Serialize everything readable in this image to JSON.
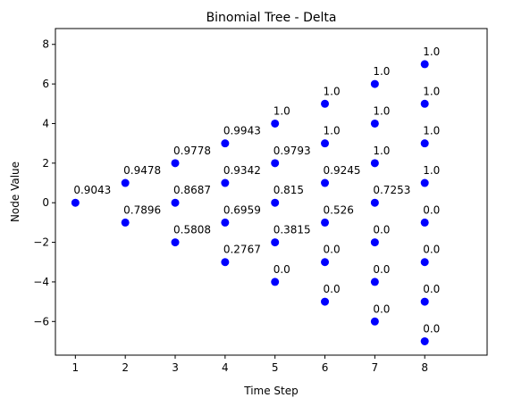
{
  "chart_data": {
    "type": "scatter",
    "title": "Binomial Tree - Delta",
    "xlabel": "Time Step",
    "ylabel": "Node Value",
    "xlim": [
      0.6,
      9.25
    ],
    "ylim": [
      -7.7,
      8.8
    ],
    "xticks": [
      1,
      2,
      3,
      4,
      5,
      6,
      7,
      8
    ],
    "yticks": [
      -6,
      -4,
      -2,
      0,
      2,
      4,
      6,
      8
    ],
    "grid": false,
    "marker_color": "#0000ff",
    "points": [
      {
        "x": 1,
        "y": 0,
        "label": "0.9043"
      },
      {
        "x": 2,
        "y": 1,
        "label": "0.9478"
      },
      {
        "x": 2,
        "y": -1,
        "label": "0.7896"
      },
      {
        "x": 3,
        "y": 2,
        "label": "0.9778"
      },
      {
        "x": 3,
        "y": 0,
        "label": "0.8687"
      },
      {
        "x": 3,
        "y": -2,
        "label": "0.5808"
      },
      {
        "x": 4,
        "y": 3,
        "label": "0.9943"
      },
      {
        "x": 4,
        "y": 1,
        "label": "0.9342"
      },
      {
        "x": 4,
        "y": -1,
        "label": "0.6959"
      },
      {
        "x": 4,
        "y": -3,
        "label": "0.2767"
      },
      {
        "x": 5,
        "y": 4,
        "label": "1.0"
      },
      {
        "x": 5,
        "y": 2,
        "label": "0.9793"
      },
      {
        "x": 5,
        "y": 0,
        "label": "0.815"
      },
      {
        "x": 5,
        "y": -2,
        "label": "0.3815"
      },
      {
        "x": 5,
        "y": -4,
        "label": "0.0"
      },
      {
        "x": 6,
        "y": 5,
        "label": "1.0"
      },
      {
        "x": 6,
        "y": 3,
        "label": "1.0"
      },
      {
        "x": 6,
        "y": 1,
        "label": "0.9245"
      },
      {
        "x": 6,
        "y": -1,
        "label": "0.526"
      },
      {
        "x": 6,
        "y": -3,
        "label": "0.0"
      },
      {
        "x": 6,
        "y": -5,
        "label": "0.0"
      },
      {
        "x": 7,
        "y": 6,
        "label": "1.0"
      },
      {
        "x": 7,
        "y": 4,
        "label": "1.0"
      },
      {
        "x": 7,
        "y": 2,
        "label": "1.0"
      },
      {
        "x": 7,
        "y": 0,
        "label": "0.7253"
      },
      {
        "x": 7,
        "y": -2,
        "label": "0.0"
      },
      {
        "x": 7,
        "y": -4,
        "label": "0.0"
      },
      {
        "x": 7,
        "y": -6,
        "label": "0.0"
      },
      {
        "x": 8,
        "y": 7,
        "label": "1.0"
      },
      {
        "x": 8,
        "y": 5,
        "label": "1.0"
      },
      {
        "x": 8,
        "y": 3,
        "label": "1.0"
      },
      {
        "x": 8,
        "y": 1,
        "label": "1.0"
      },
      {
        "x": 8,
        "y": -1,
        "label": "0.0"
      },
      {
        "x": 8,
        "y": -3,
        "label": "0.0"
      },
      {
        "x": 8,
        "y": -5,
        "label": "0.0"
      },
      {
        "x": 8,
        "y": -7,
        "label": "0.0"
      }
    ]
  }
}
